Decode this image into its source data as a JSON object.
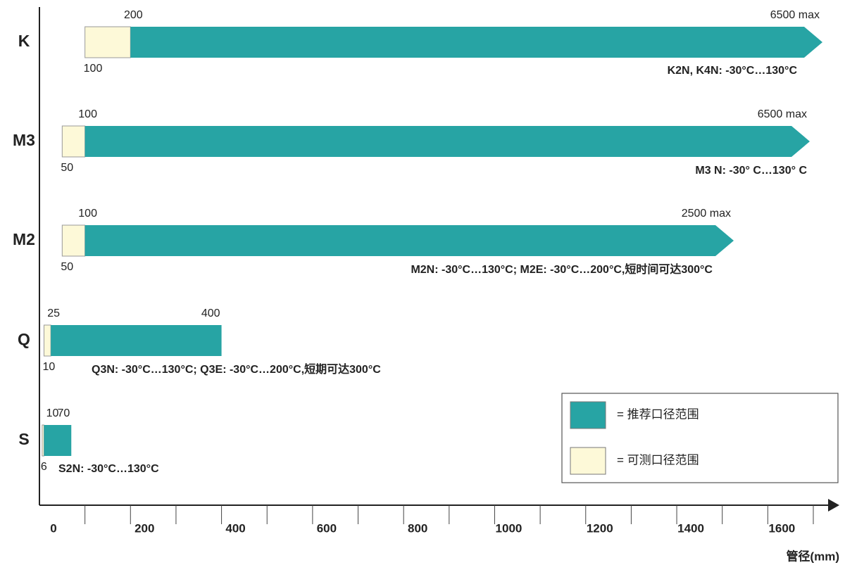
{
  "chart_data": {
    "type": "range_bar",
    "x_label": "管径(mm)",
    "xlim": [
      0,
      1700
    ],
    "xticks": [
      0,
      200,
      400,
      600,
      800,
      1000,
      1200,
      1400,
      1600
    ],
    "xminorticks": [
      100,
      300,
      500,
      700,
      900,
      1100,
      1300,
      1500,
      1700
    ],
    "recommended_color": "#27a4a4",
    "measurable_color": "#fdf9d8",
    "legend": [
      {
        "label": "= 推荐口径范围",
        "color": "#27a4a4"
      },
      {
        "label": "= 可测口径范围",
        "color": "#fdf9d8"
      }
    ],
    "rows": [
      {
        "category": "K",
        "measurable_from": 100,
        "recommended_from": 200,
        "recommended_to": 6500,
        "recommended_to_label": "6500 max",
        "open_ended": true,
        "note": "K2N, K4N: -30°C…130°C"
      },
      {
        "category": "M3",
        "measurable_from": 50,
        "recommended_from": 100,
        "recommended_to": 6500,
        "recommended_to_label": "6500 max",
        "open_ended": true,
        "note": "M3 N: -30° C…130° C"
      },
      {
        "category": "M2",
        "measurable_from": 50,
        "recommended_from": 100,
        "recommended_to": 2500,
        "recommended_to_label": "2500 max",
        "open_ended": true,
        "note": "M2N: -30°C…130°C; M2E: -30°C…200°C,短时间可达300°C"
      },
      {
        "category": "Q",
        "measurable_from": 10,
        "recommended_from": 25,
        "recommended_to": 400,
        "open_ended": false,
        "note": "Q3N: -30°C…130°C; Q3E: -30°C…200°C,短期可达300°C"
      },
      {
        "category": "S",
        "measurable_from": 6,
        "recommended_from": 10,
        "recommended_to": 70,
        "open_ended": false,
        "note": "S2N: -30°C…130°C"
      }
    ]
  }
}
